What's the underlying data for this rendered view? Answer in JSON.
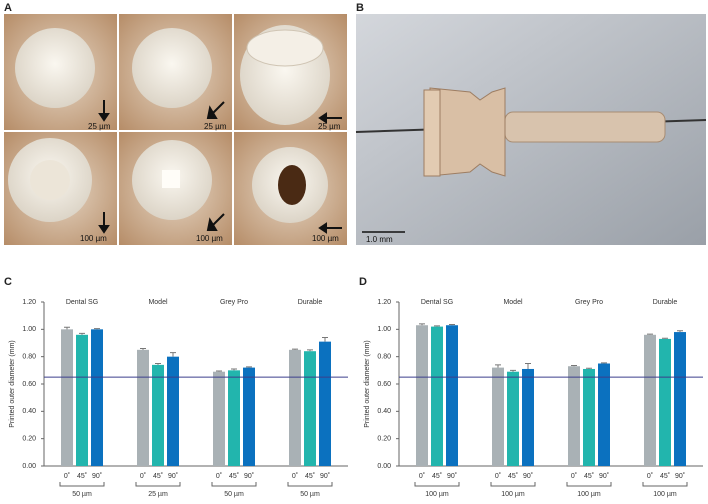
{
  "panels": [
    "A",
    "B"
  ],
  "photos": {
    "A": {
      "scale_labels": [
        "25 µm",
        "25 µm",
        "25 µm",
        "100 µm",
        "100 µm",
        "100 µm"
      ]
    },
    "B": {
      "scale_bar": "1.0 mm"
    }
  },
  "chart_data": [
    {
      "type": "bar",
      "panel": "C",
      "y_label": "Printed outer diameter (mm)",
      "categories": [
        "Dental SG",
        "Model",
        "Grey Pro",
        "Durable"
      ],
      "layer_labels": [
        "50 µm",
        "25 µm",
        "50 µm",
        "50 µm"
      ],
      "series": [
        {
          "name": "0˚",
          "color": "#a9b1b5",
          "values": [
            1.0,
            0.85,
            0.69,
            0.85
          ],
          "errors": [
            0.015,
            0.01,
            0.005,
            0.005
          ]
        },
        {
          "name": "45˚",
          "color": "#22b5ad",
          "values": [
            0.96,
            0.74,
            0.7,
            0.84
          ],
          "errors": [
            0.01,
            0.01,
            0.01,
            0.01
          ]
        },
        {
          "name": "90˚",
          "color": "#0b71bf",
          "values": [
            1.0,
            0.8,
            0.72,
            0.91
          ],
          "errors": [
            0.005,
            0.03,
            0.005,
            0.03
          ]
        }
      ],
      "reference_line": 0.65,
      "ylim": [
        0,
        1.2
      ],
      "yticks": [
        {
          "value": 0,
          "label": "0.00"
        },
        {
          "value": 0.2,
          "label": "0.20"
        },
        {
          "value": 0.4,
          "label": "0.40"
        },
        {
          "value": 0.6,
          "label": "0.60"
        },
        {
          "value": 0.8,
          "label": "0.80"
        },
        {
          "value": 1.0,
          "label": "1.00"
        },
        {
          "value": 1.2,
          "label": "1.20"
        }
      ]
    },
    {
      "type": "bar",
      "panel": "D",
      "y_label": "Printed outer diameter (mm)",
      "categories": [
        "Dental SG",
        "Model",
        "Grey Pro",
        "Durable"
      ],
      "layer_labels": [
        "100 µm",
        "100 µm",
        "100 µm",
        "100 µm"
      ],
      "series": [
        {
          "name": "0˚",
          "color": "#a9b1b5",
          "values": [
            1.03,
            0.72,
            0.73,
            0.96
          ],
          "errors": [
            0.01,
            0.02,
            0.005,
            0.005
          ]
        },
        {
          "name": "45˚",
          "color": "#22b5ad",
          "values": [
            1.02,
            0.69,
            0.71,
            0.93
          ],
          "errors": [
            0.005,
            0.01,
            0.005,
            0.005
          ]
        },
        {
          "name": "90˚",
          "color": "#0b71bf",
          "values": [
            1.03,
            0.71,
            0.75,
            0.98
          ],
          "errors": [
            0.005,
            0.04,
            0.005,
            0.01
          ]
        }
      ],
      "reference_line": 0.65,
      "ylim": [
        0,
        1.2
      ],
      "yticks": [
        {
          "value": 0,
          "label": "0.00"
        },
        {
          "value": 0.2,
          "label": "0.20"
        },
        {
          "value": 0.4,
          "label": "0.40"
        },
        {
          "value": 0.6,
          "label": "0.60"
        },
        {
          "value": 0.8,
          "label": "0.80"
        },
        {
          "value": 1.0,
          "label": "1.00"
        },
        {
          "value": 1.2,
          "label": "1.20"
        }
      ]
    }
  ]
}
